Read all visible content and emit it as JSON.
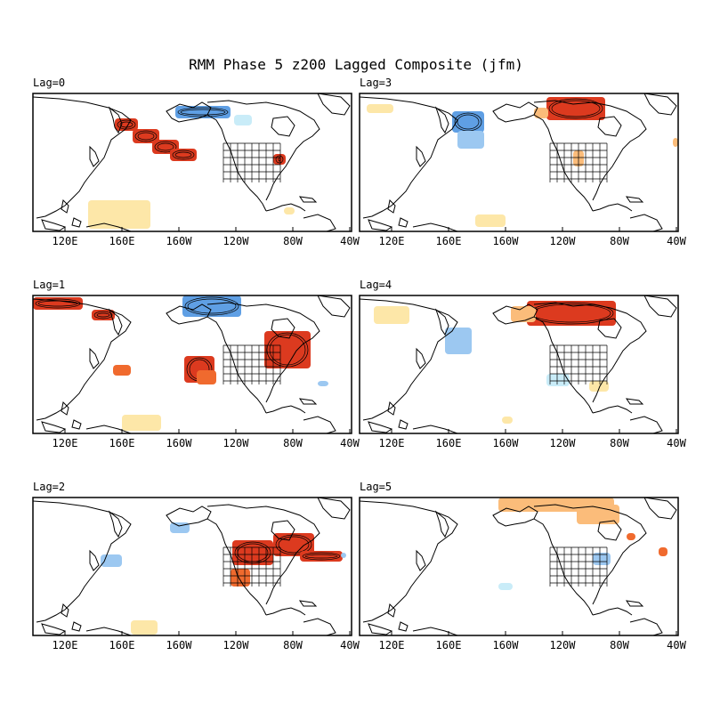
{
  "title": "RMM Phase 5 z200 Lagged Composite (jfm)",
  "lon_ticks": [
    "120E",
    "160E",
    "160W",
    "120W",
    "80W",
    "40W"
  ],
  "colors": {
    "strong_pos": "#dc3a1f",
    "pos": "#f06a2e",
    "weak_pos": "#fbbc7a",
    "faint_pos": "#fde7a8",
    "neg": "#5f9fe4",
    "weak_neg": "#9cc8f1",
    "faint_neg": "#c9ecf8",
    "land_line": "#000000"
  },
  "panels": [
    {
      "id": "lag0",
      "label": "Lag=0"
    },
    {
      "id": "lag1",
      "label": "Lag=1"
    },
    {
      "id": "lag2",
      "label": "Lag=2"
    },
    {
      "id": "lag3",
      "label": "Lag=3"
    },
    {
      "id": "lag4",
      "label": "Lag=4"
    },
    {
      "id": "lag5",
      "label": "Lag=5"
    }
  ]
}
